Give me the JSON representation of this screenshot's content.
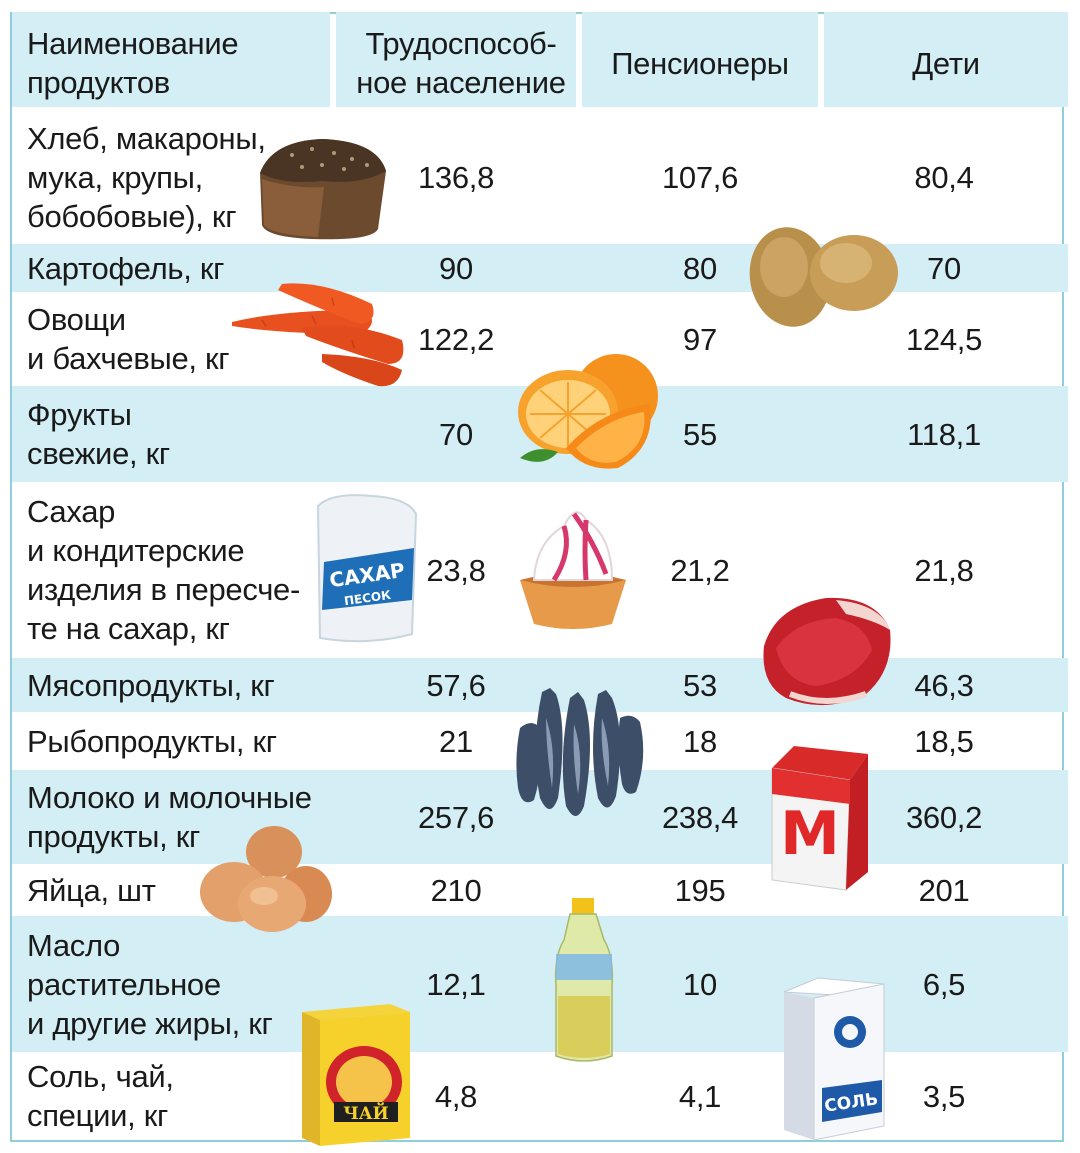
{
  "header": {
    "product": "Наименование\nпродуктов",
    "working": "Трудоспособ-\nное население",
    "pensioners": "Пенсионеры",
    "children": "Дети"
  },
  "rows": [
    {
      "name": "Хлеб, макароны,\nмука, крупы,\nбобобовые), кг",
      "working": "136,8",
      "pensioners": "107,6",
      "children": "80,4"
    },
    {
      "name": "Картофель, кг",
      "working": "90",
      "pensioners": "80",
      "children": "70"
    },
    {
      "name": "Овощи\nи бахчевые, кг",
      "working": "122,2",
      "pensioners": "97",
      "children": "124,5"
    },
    {
      "name": "Фрукты\nсвежие, кг",
      "working": "70",
      "pensioners": "55",
      "children": "118,1"
    },
    {
      "name": "Сахар\nи кондитерские\nизделия в пересче-\nте на сахар, кг",
      "working": "23,8",
      "pensioners": "21,2",
      "children": "21,8"
    },
    {
      "name": "Мясопродукты, кг",
      "working": "57,6",
      "pensioners": "53",
      "children": "46,3"
    },
    {
      "name": "Рыбопродукты, кг",
      "working": "21",
      "pensioners": "18",
      "children": "18,5"
    },
    {
      "name": "Молоко и молочные\nпродукты, кг",
      "working": "257,6",
      "pensioners": "238,4",
      "children": "360,2"
    },
    {
      "name": "Яйца, шт",
      "working": "210",
      "pensioners": "195",
      "children": "201"
    },
    {
      "name": "Масло\nрастительное\nи другие жиры, кг",
      "working": "12,1",
      "pensioners": "10",
      "children": "6,5"
    },
    {
      "name": "Соль, чай,\nспеции, кг",
      "working": "4,8",
      "pensioners": "4,1",
      "children": "3,5"
    }
  ],
  "pictures": {
    "sugar_pack": "САХАР\nПЕСОК",
    "tea_pack": "ЧАЙ",
    "salt_pack": "СОЛЬ",
    "milk_pack": "М"
  },
  "colors": {
    "band": "#d3eef4",
    "border": "#8fcfdc"
  }
}
